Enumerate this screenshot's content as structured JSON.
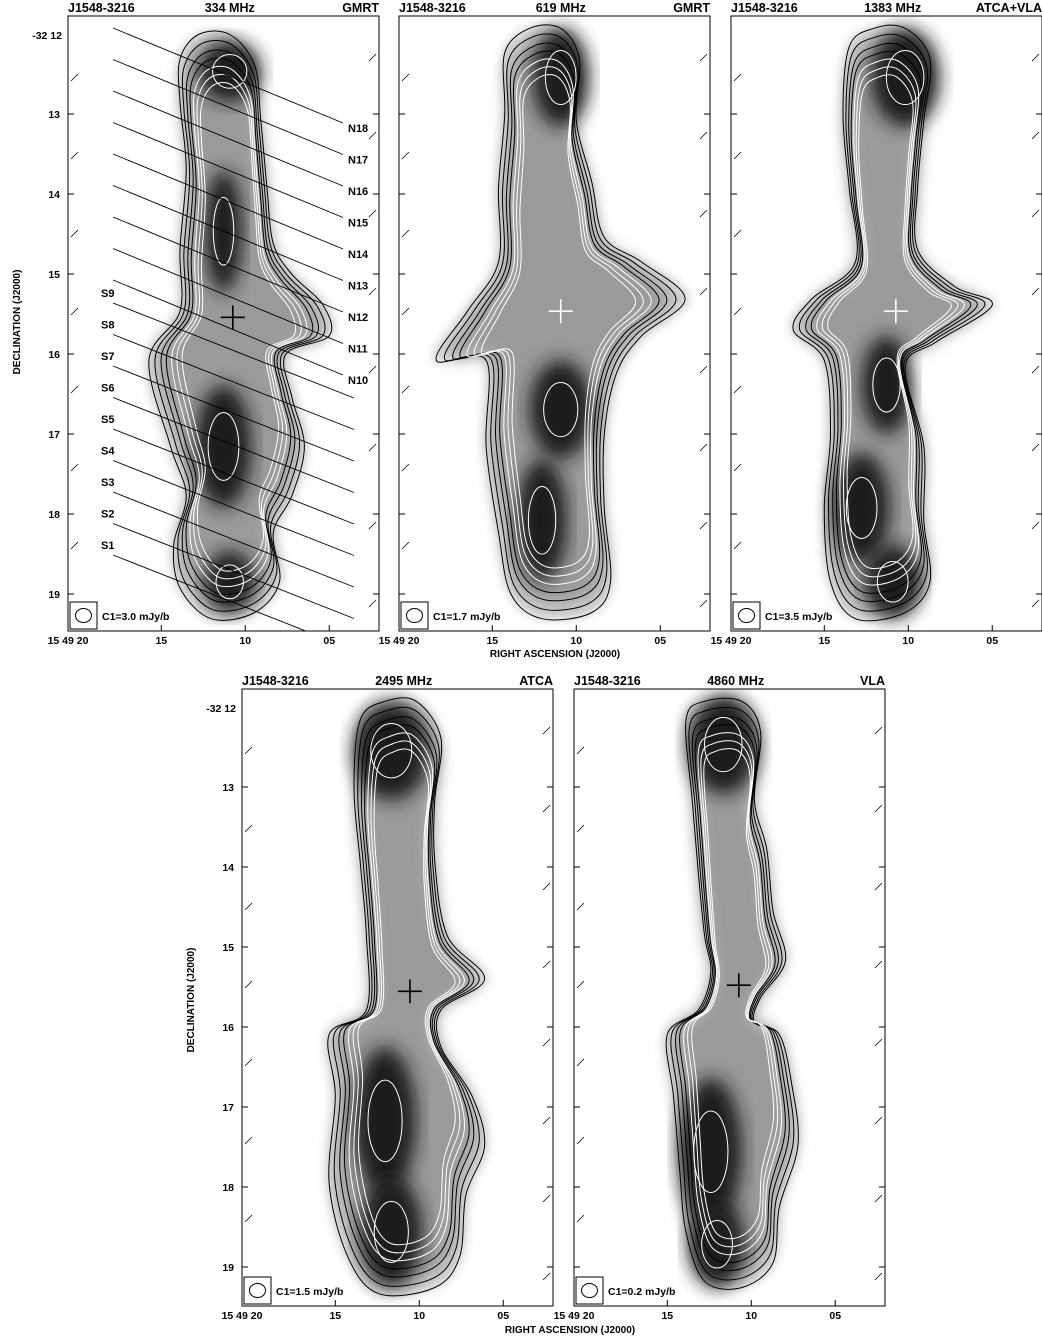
{
  "figure": {
    "xlabel": "RIGHT ASCENSION (J2000)",
    "ylabel": "DECLINATION (J2000)",
    "ra_ticks": [
      "15 49 20",
      "15",
      "10",
      "05"
    ],
    "dec_first_tick": "-32 12",
    "dec_ticks": [
      "13",
      "14",
      "15",
      "16",
      "17",
      "18",
      "19"
    ]
  },
  "panels": [
    {
      "source": "J1548-3216",
      "freq": "334 MHz",
      "telescope": "GMRT",
      "beam_label": "C1=3.0 mJy/b",
      "cross_color": "#000000",
      "slices_north": [
        "N18",
        "N17",
        "N16",
        "N15",
        "N14",
        "N13",
        "N12",
        "N11",
        "N10"
      ],
      "slices_south": [
        "S9",
        "S8",
        "S7",
        "S6",
        "S5",
        "S4",
        "S3",
        "S2",
        "S1"
      ]
    },
    {
      "source": "J1548-3216",
      "freq": "619 MHz",
      "telescope": "GMRT",
      "beam_label": "C1=1.7 mJy/b",
      "cross_color": "#ffffff"
    },
    {
      "source": "J1548-3216",
      "freq": "1383 MHz",
      "telescope": "ATCA+VLA",
      "beam_label": "C1=3.5 mJy/b",
      "cross_color": "#ffffff"
    },
    {
      "source": "J1548-3216",
      "freq": "2495 MHz",
      "telescope": "ATCA",
      "beam_label": "C1=1.5 mJy/b",
      "cross_color": "#000000"
    },
    {
      "source": "J1548-3216",
      "freq": "4860 MHz",
      "telescope": "VLA",
      "beam_label": "C1=0.2 mJy/b",
      "cross_color": "#000000"
    }
  ]
}
